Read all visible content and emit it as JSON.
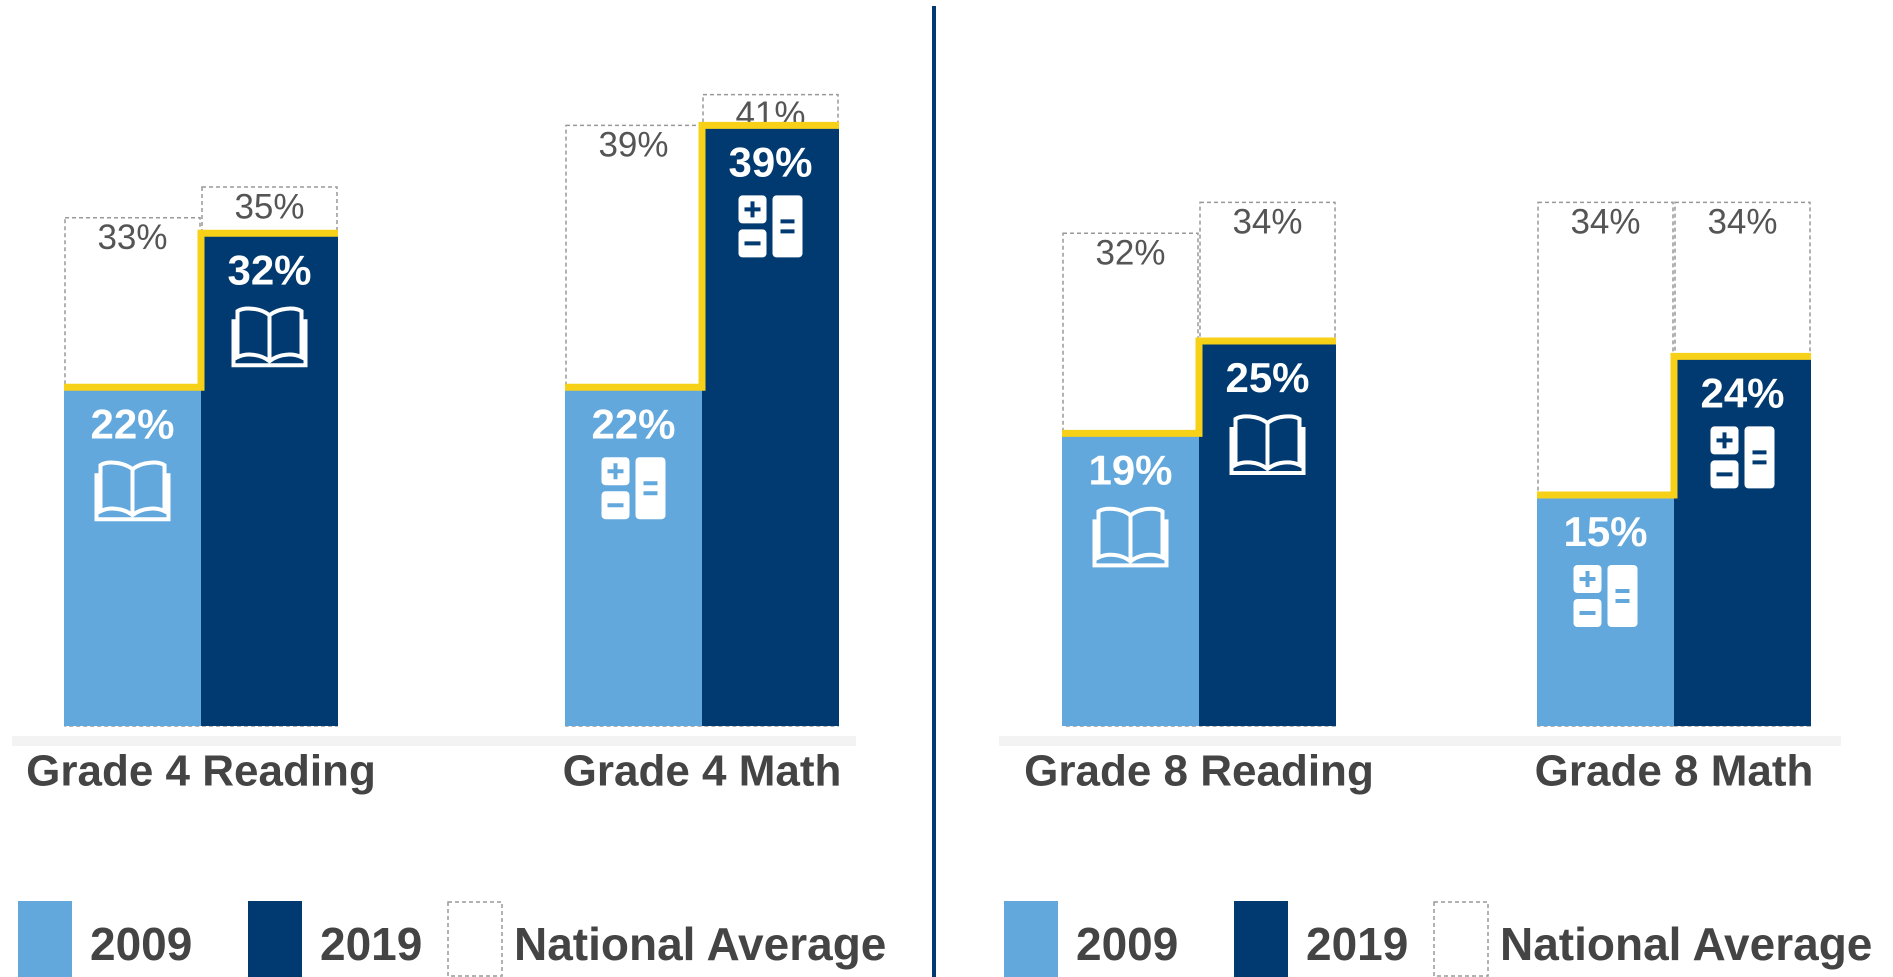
{
  "chart_data": [
    {
      "type": "bar",
      "categories": [
        "Grade 4 Reading",
        "Grade 4 Math"
      ],
      "national_average_name": "National Average",
      "series": [
        {
          "name": "2009",
          "color": "#62a8dc",
          "values": [
            22,
            22
          ],
          "value_labels": [
            "22%",
            "22%"
          ],
          "national_average": [
            33,
            39
          ],
          "national_average_labels": [
            "33%",
            "39%"
          ]
        },
        {
          "name": "2019",
          "color": "#003a70",
          "values": [
            32,
            39
          ],
          "value_labels": [
            "32%",
            "39%"
          ],
          "national_average": [
            35,
            41
          ],
          "national_average_labels": [
            "35%",
            "41%"
          ]
        }
      ]
    },
    {
      "type": "bar",
      "categories": [
        "Grade 8 Reading",
        "Grade 8 Math"
      ],
      "national_average_name": "National Average",
      "series": [
        {
          "name": "2009",
          "color": "#62a8dc",
          "values": [
            19,
            15
          ],
          "value_labels": [
            "19%",
            "15%"
          ],
          "national_average": [
            32,
            34
          ],
          "national_average_labels": [
            "32%",
            "34%"
          ]
        },
        {
          "name": "2019",
          "color": "#003a70",
          "values": [
            25,
            24
          ],
          "value_labels": [
            "25%",
            "24%"
          ],
          "national_average": [
            34,
            34
          ],
          "national_average_labels": [
            "34%",
            "34%"
          ]
        }
      ]
    }
  ]
}
